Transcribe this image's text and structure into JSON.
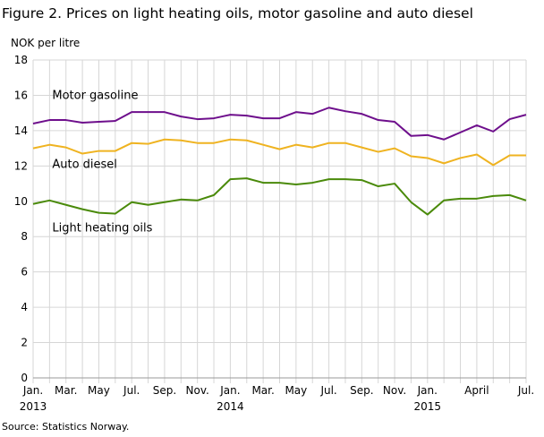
{
  "chart_data": {
    "type": "line",
    "title": "Figure 2. Prices on light heating oils, motor gasoline and auto diesel",
    "ylabel": "NOK per litre",
    "source": "Source: Statistics Norway.",
    "ylim": [
      0,
      18
    ],
    "yticks": [
      0,
      2,
      4,
      6,
      8,
      10,
      12,
      14,
      16,
      18
    ],
    "grid": true,
    "x": [
      "2013-01",
      "2013-02",
      "2013-03",
      "2013-04",
      "2013-05",
      "2013-06",
      "2013-07",
      "2013-08",
      "2013-09",
      "2013-10",
      "2013-11",
      "2013-12",
      "2014-01",
      "2014-02",
      "2014-03",
      "2014-04",
      "2014-05",
      "2014-06",
      "2014-07",
      "2014-08",
      "2014-09",
      "2014-10",
      "2014-11",
      "2014-12",
      "2015-01",
      "2015-02",
      "2015-03",
      "2015-04",
      "2015-05",
      "2015-06",
      "2015-07"
    ],
    "xticklabels": [
      {
        "i": 0,
        "label": "Jan.",
        "year": "2013"
      },
      {
        "i": 2,
        "label": "Mar."
      },
      {
        "i": 4,
        "label": "May"
      },
      {
        "i": 6,
        "label": "Jul."
      },
      {
        "i": 8,
        "label": "Sep."
      },
      {
        "i": 10,
        "label": "Nov."
      },
      {
        "i": 12,
        "label": "Jan.",
        "year": "2014"
      },
      {
        "i": 14,
        "label": "Mar."
      },
      {
        "i": 16,
        "label": "May"
      },
      {
        "i": 18,
        "label": "Jul."
      },
      {
        "i": 20,
        "label": "Sep."
      },
      {
        "i": 22,
        "label": "Nov."
      },
      {
        "i": 24,
        "label": "Jan.",
        "year": "2015"
      },
      {
        "i": 27,
        "label": "April"
      },
      {
        "i": 30,
        "label": "Jul."
      }
    ],
    "series": [
      {
        "name": "Motor gasoline",
        "color": "#6e0f8c",
        "label_at": {
          "i": 1,
          "y": 16.0
        },
        "values": [
          14.4,
          14.6,
          14.6,
          14.45,
          14.5,
          14.55,
          15.05,
          15.05,
          15.05,
          14.8,
          14.65,
          14.7,
          14.9,
          14.85,
          14.7,
          14.7,
          15.05,
          14.95,
          15.3,
          15.1,
          14.95,
          14.6,
          14.5,
          13.7,
          13.75,
          13.5,
          13.9,
          14.3,
          13.95,
          14.65,
          14.9
        ]
      },
      {
        "name": "Auto diesel",
        "color": "#efb320",
        "label_at": {
          "i": 1,
          "y": 12.1
        },
        "values": [
          13.0,
          13.2,
          13.05,
          12.7,
          12.85,
          12.85,
          13.3,
          13.25,
          13.5,
          13.45,
          13.3,
          13.3,
          13.5,
          13.45,
          13.2,
          12.95,
          13.2,
          13.05,
          13.3,
          13.3,
          13.05,
          12.8,
          13.0,
          12.55,
          12.45,
          12.15,
          12.45,
          12.65,
          12.05,
          12.6,
          12.6
        ]
      },
      {
        "name": "Light heating oils",
        "color": "#4a8a0a",
        "label_at": {
          "i": 1,
          "y": 8.5
        },
        "values": [
          9.85,
          10.05,
          9.8,
          9.55,
          9.35,
          9.3,
          9.95,
          9.8,
          9.95,
          10.1,
          10.05,
          10.35,
          11.25,
          11.3,
          11.05,
          11.05,
          10.95,
          11.05,
          11.25,
          11.25,
          11.2,
          10.85,
          11.0,
          9.95,
          9.25,
          10.05,
          10.15,
          10.15,
          10.3,
          10.35,
          10.05
        ]
      }
    ]
  }
}
